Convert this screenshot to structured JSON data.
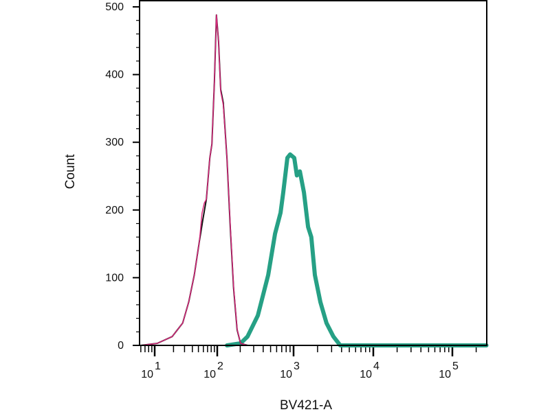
{
  "chart_data": {
    "type": "line",
    "title": "",
    "xlabel": "BV421-A",
    "ylabel": "Count",
    "x_scale": "log (biexponential display)",
    "xlim": [
      6,
      270000
    ],
    "ylim": [
      0,
      500
    ],
    "grid": false,
    "yticks": [
      {
        "value": 0,
        "label": "0"
      },
      {
        "value": 100,
        "label": "100"
      },
      {
        "value": 200,
        "label": "200"
      },
      {
        "value": 300,
        "label": "300"
      },
      {
        "value": 400,
        "label": "400"
      },
      {
        "value": 500,
        "label": "500"
      }
    ],
    "xticks": [
      {
        "value": 10,
        "base": "10",
        "exp": "1"
      },
      {
        "value": 100,
        "base": "10",
        "exp": "2"
      },
      {
        "value": 1000,
        "base": "10",
        "exp": "3"
      },
      {
        "value": 10000,
        "base": "10",
        "exp": "4"
      },
      {
        "value": 100000,
        "base": "10",
        "exp": "5"
      }
    ],
    "series": [
      {
        "color": "#d6287a",
        "width": 1.5,
        "points": [
          [
            6,
            0
          ],
          [
            11,
            3
          ],
          [
            19,
            13
          ],
          [
            28,
            33
          ],
          [
            35,
            64
          ],
          [
            43,
            104
          ],
          [
            52,
            155
          ],
          [
            57,
            195
          ],
          [
            62,
            210
          ],
          [
            67,
            216
          ],
          [
            76,
            277
          ],
          [
            82,
            297
          ],
          [
            90,
            388
          ],
          [
            97,
            488
          ],
          [
            104,
            449
          ],
          [
            111,
            375
          ],
          [
            120,
            355
          ],
          [
            134,
            277
          ],
          [
            148,
            178
          ],
          [
            164,
            86
          ],
          [
            182,
            24
          ],
          [
            202,
            3
          ],
          [
            249,
            0
          ]
        ]
      },
      {
        "color": "#111111",
        "width": 2,
        "points": [
          [
            6,
            0
          ],
          [
            11,
            3
          ],
          [
            19,
            13
          ],
          [
            28,
            33
          ],
          [
            35,
            64
          ],
          [
            43,
            104
          ],
          [
            52,
            155
          ],
          [
            59,
            186
          ],
          [
            67,
            216
          ],
          [
            76,
            277
          ],
          [
            82,
            297
          ],
          [
            90,
            388
          ],
          [
            97,
            488
          ],
          [
            104,
            449
          ],
          [
            111,
            378
          ],
          [
            120,
            358
          ],
          [
            134,
            277
          ],
          [
            148,
            175
          ],
          [
            164,
            84
          ],
          [
            182,
            23
          ],
          [
            202,
            3
          ],
          [
            249,
            0
          ]
        ]
      },
      {
        "color": "#26a085",
        "width": 6,
        "points": [
          [
            134,
            0
          ],
          [
            202,
            3
          ],
          [
            249,
            13
          ],
          [
            340,
            44
          ],
          [
            465,
            104
          ],
          [
            572,
            165
          ],
          [
            675,
            196
          ],
          [
            733,
            226
          ],
          [
            830,
            277
          ],
          [
            901,
            282
          ],
          [
            1020,
            277
          ],
          [
            1100,
            251
          ],
          [
            1200,
            257
          ],
          [
            1350,
            226
          ],
          [
            1520,
            175
          ],
          [
            1670,
            160
          ],
          [
            1850,
            104
          ],
          [
            2170,
            64
          ],
          [
            2590,
            33
          ],
          [
            3160,
            13
          ],
          [
            3850,
            0
          ],
          [
            14000,
            0
          ],
          [
            270000,
            0
          ]
        ]
      }
    ]
  }
}
